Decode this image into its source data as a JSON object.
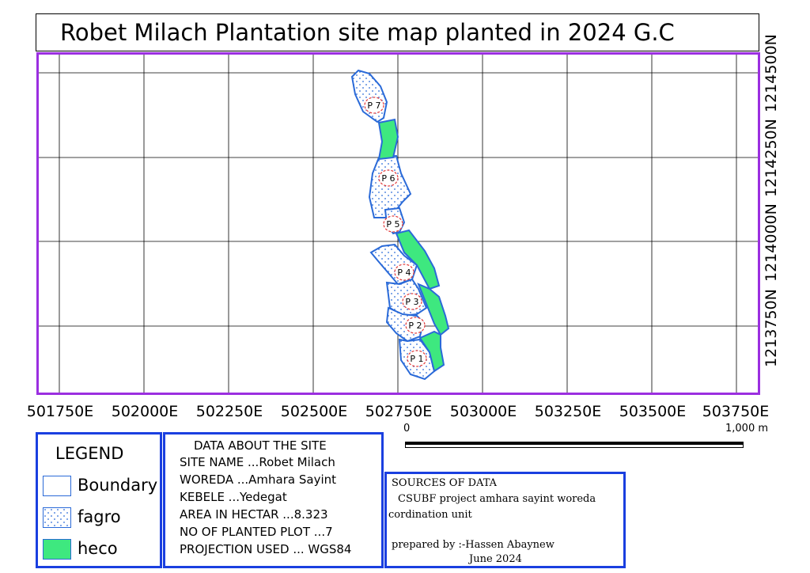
{
  "title": "Robet Milach Plantation site map planted in 2024 G.C",
  "x_tick_labels": [
    "501750E",
    "502000E",
    "502250E",
    "502500E",
    "502750E",
    "503000E",
    "503250E",
    "503500E",
    "503750E"
  ],
  "y_tick_labels": [
    "1213750N",
    "1214000N",
    "1214250N",
    "1214500N"
  ],
  "scale_bar": {
    "start_label": "0",
    "end_label": "1,000 m"
  },
  "plots": [
    "P 1",
    "P 2",
    "P 3",
    "P 4",
    "P 5",
    "P 6",
    "P 7"
  ],
  "legend": {
    "title": "LEGEND",
    "items": [
      {
        "label": "Boundary",
        "pattern": "outline",
        "border_color": "#2a6ad8",
        "fill_color": "#ffffff"
      },
      {
        "label": "fagro",
        "pattern": "dotted",
        "border_color": "#2a6ad8",
        "fill_color": "#ffffff",
        "dot_color": "#2a6ad8"
      },
      {
        "label": "heco",
        "pattern": "solid",
        "border_color": "#2a6ad8",
        "fill_color": "#3ee87f"
      }
    ]
  },
  "site_info": {
    "heading": "DATA ABOUT THE SITE",
    "lines": [
      "SITE NAME ...Robet Milach",
      "WOREDA ...Amhara Sayint",
      "KEBELE ...Yedegat",
      "AREA IN HECTAR ...8.323",
      "NO OF PLANTED PLOT ...7",
      "PROJECTION USED ... WGS84"
    ]
  },
  "sources": {
    "heading": "SOURCES OF DATA",
    "line1": "CSUBF  project  amhara  sayint  woreda",
    "line2": "cordination unit",
    "prepared_by": "prepared by :-Hassen Abaynew",
    "date": "June 2024"
  },
  "colors": {
    "map_frame": "#9b2fe0",
    "box_border": "#1a3fe0",
    "boundary": "#2a6ad8",
    "heco_fill": "#3ee87f",
    "plot_label_ring": "#e23b3b"
  }
}
